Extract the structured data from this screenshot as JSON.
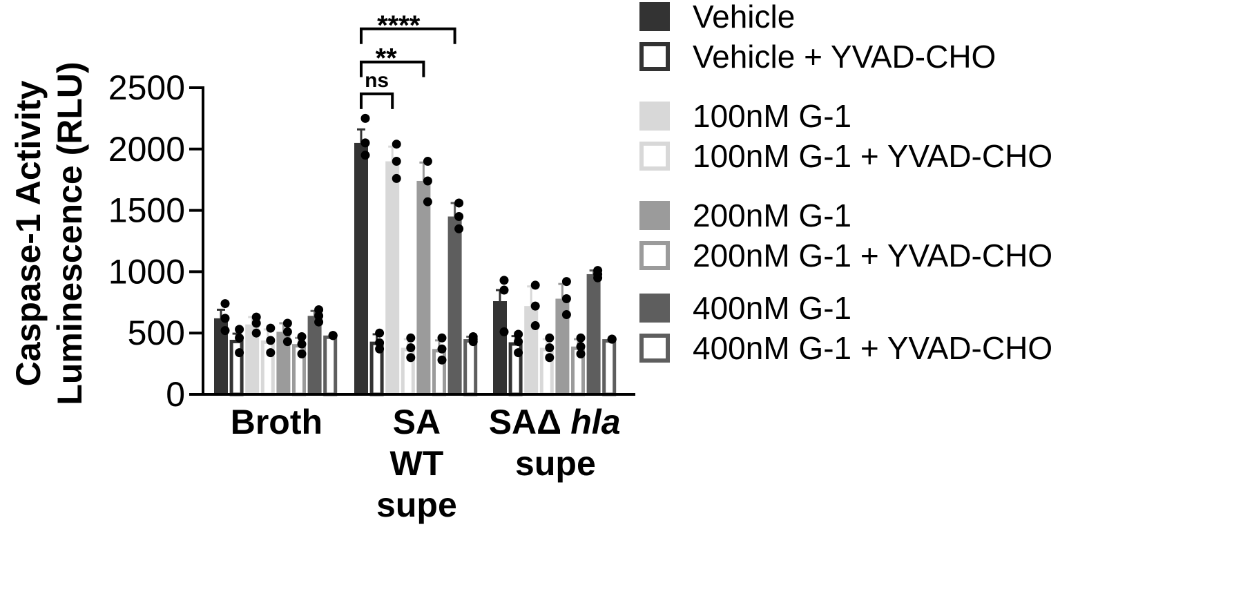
{
  "chart_data": {
    "type": "bar",
    "ylabel_line1": "Caspase-1 Activity",
    "ylabel_line2": "Luminescence (RLU)",
    "ylim": [
      0,
      2500
    ],
    "yticks": [
      0,
      500,
      1000,
      1500,
      2000,
      2500
    ],
    "categories": [
      {
        "lines": [
          "Broth"
        ]
      },
      {
        "lines": [
          "SA",
          "WT",
          "supe"
        ]
      },
      {
        "lines": [
          "SAΔ",
          "hla",
          "supe"
        ]
      }
    ],
    "series": [
      {
        "name": "Vehicle",
        "color": "#333333",
        "filled": true,
        "values": [
          620,
          2050,
          760
        ],
        "errors": [
          70,
          110,
          90
        ],
        "points": [
          [
            740,
            520,
            620
          ],
          [
            2250,
            1950,
            2050
          ],
          [
            930,
            510,
            850
          ]
        ]
      },
      {
        "name": "Vehicle + YVAD-CHO",
        "color": "#333333",
        "filled": false,
        "values": [
          445,
          430,
          425
        ],
        "errors": [
          50,
          60,
          50
        ],
        "points": [
          [
            530,
            340,
            460
          ],
          [
            500,
            370,
            420
          ],
          [
            490,
            340,
            430
          ]
        ]
      },
      {
        "name": "100nM G-1",
        "color": "#d8d8d8",
        "filled": true,
        "values": [
          570,
          1900,
          720
        ],
        "errors": [
          60,
          120,
          160
        ],
        "points": [
          [
            630,
            500,
            580
          ],
          [
            2040,
            1760,
            1900
          ],
          [
            890,
            560,
            720
          ]
        ]
      },
      {
        "name": "100nM G-1 + YVAD-CHO",
        "color": "#d8d8d8",
        "filled": false,
        "values": [
          440,
          380,
          380
        ],
        "errors": [
          90,
          70,
          70
        ],
        "points": [
          [
            540,
            340,
            440
          ],
          [
            460,
            300,
            380
          ],
          [
            460,
            300,
            380
          ]
        ]
      },
      {
        "name": "200nM G-1",
        "color": "#9b9b9b",
        "filled": true,
        "values": [
          510,
          1740,
          780
        ],
        "errors": [
          70,
          150,
          120
        ],
        "points": [
          [
            580,
            430,
            510
          ],
          [
            1900,
            1570,
            1740
          ],
          [
            920,
            650,
            780
          ]
        ]
      },
      {
        "name": "200nM G-1 + YVAD-CHO",
        "color": "#9b9b9b",
        "filled": false,
        "values": [
          410,
          370,
          390
        ],
        "errors": [
          50,
          70,
          60
        ],
        "points": [
          [
            470,
            330,
            410
          ],
          [
            460,
            280,
            370
          ],
          [
            460,
            330,
            390
          ]
        ]
      },
      {
        "name": "400nM G-1",
        "color": "#5e5e5e",
        "filled": true,
        "values": [
          640,
          1450,
          980
        ],
        "errors": [
          40,
          110,
          30
        ],
        "points": [
          [
            690,
            590,
            640
          ],
          [
            1560,
            1350,
            1450
          ],
          [
            1010,
            950,
            980
          ]
        ]
      },
      {
        "name": "400nM G-1 + YVAD-CHO",
        "color": "#5e5e5e",
        "filled": false,
        "values": [
          480,
          450,
          450
        ],
        "errors": [
          0,
          20,
          0
        ],
        "points": [
          [
            480,
            480,
            480
          ],
          [
            430,
            470,
            450
          ],
          [
            450,
            450,
            450
          ]
        ]
      }
    ],
    "significance": [
      {
        "label": "ns",
        "from_series": 0,
        "to_series": 2,
        "category": 1,
        "y": 2450
      },
      {
        "label": "**",
        "from_series": 0,
        "to_series": 4,
        "category": 1,
        "y": 2710
      },
      {
        "label": "****",
        "from_series": 0,
        "to_series": 6,
        "category": 1,
        "y": 2980
      }
    ]
  }
}
